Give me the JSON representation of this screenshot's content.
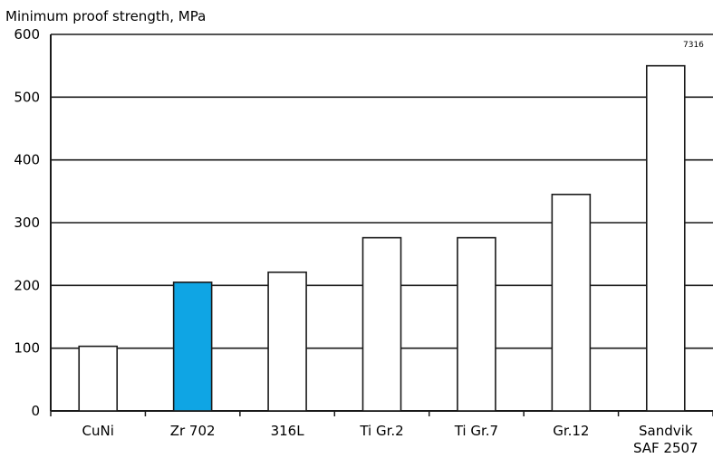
{
  "chart_data": {
    "type": "bar",
    "title": "Minimum proof strength, MPa",
    "categories": [
      "CuNi",
      "Zr 702",
      "316L",
      "Ti Gr.2",
      "Ti Gr.7",
      "Gr.12",
      "Sandvik SAF 2507"
    ],
    "category_lines": [
      [
        "CuNi"
      ],
      [
        "Zr 702"
      ],
      [
        "316L"
      ],
      [
        "Ti Gr.2"
      ],
      [
        "Ti Gr.7"
      ],
      [
        "Gr.12"
      ],
      [
        "Sandvik",
        "SAF 2507"
      ]
    ],
    "values": [
      103,
      205,
      221,
      276,
      276,
      345,
      550
    ],
    "ylim": [
      0,
      600
    ],
    "yticks": [
      "0",
      "100",
      "200",
      "300",
      "400",
      "500",
      "600"
    ],
    "grid": true,
    "highlight_index": 1,
    "colors": {
      "bar": "#ffffff",
      "highlight": "#0fa5e4",
      "line": "#1a1a1a"
    },
    "annotation": "7316"
  }
}
